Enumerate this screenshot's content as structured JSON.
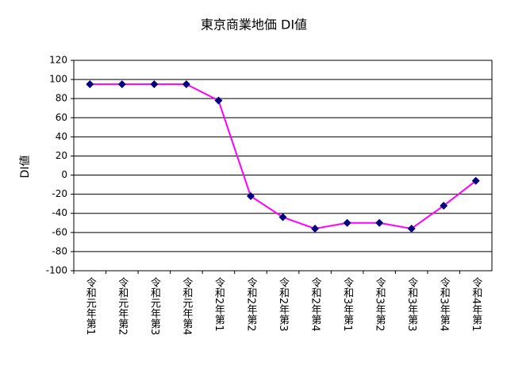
{
  "chart_data": {
    "type": "line",
    "title": "東京商業地価 DI値",
    "y_label": "DI値",
    "categories": [
      "令和元年第1",
      "令和元年第2",
      "令和元年第3",
      "令和元年第4",
      "令和2年第1",
      "令和2年第2",
      "令和2年第3",
      "令和2年第4",
      "令和3年第1",
      "令和3年第2",
      "令和3年第3",
      "令和3年第4",
      "令和4年第1"
    ],
    "series": [
      {
        "name": "DI値",
        "color": "#ff00ff",
        "marker_color": "#000080",
        "values": [
          95,
          95,
          95,
          95,
          78,
          -22,
          -44,
          -56,
          -50,
          -50,
          -56,
          -32,
          -6
        ]
      }
    ],
    "ylim": [
      -100,
      120
    ],
    "yticks": [
      -100,
      -80,
      -60,
      -40,
      -20,
      0,
      20,
      40,
      60,
      80,
      100,
      120
    ],
    "grid": true
  }
}
